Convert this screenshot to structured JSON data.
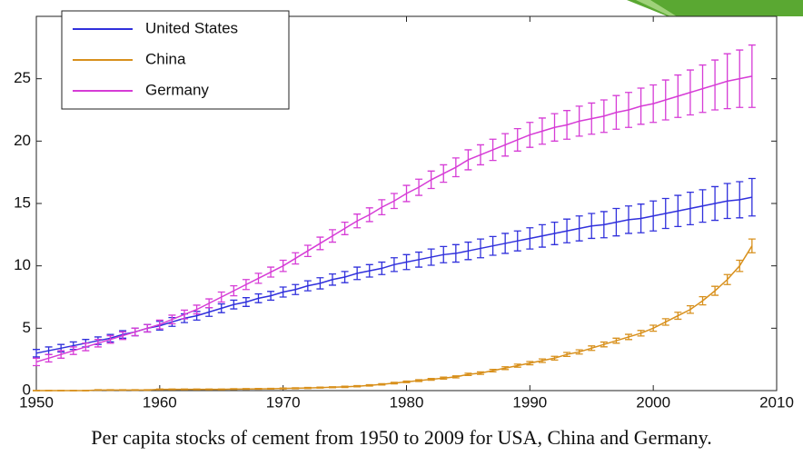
{
  "chart_data": {
    "type": "line",
    "caption": "Per capita stocks of cement from 1950 to 2009 for USA, China and Germany.",
    "x": [
      1950,
      1951,
      1952,
      1953,
      1954,
      1955,
      1956,
      1957,
      1958,
      1959,
      1960,
      1961,
      1962,
      1963,
      1964,
      1965,
      1966,
      1967,
      1968,
      1969,
      1970,
      1971,
      1972,
      1973,
      1974,
      1975,
      1976,
      1977,
      1978,
      1979,
      1980,
      1981,
      1982,
      1983,
      1984,
      1985,
      1986,
      1987,
      1988,
      1989,
      1990,
      1991,
      1992,
      1993,
      1994,
      1995,
      1996,
      1997,
      1998,
      1999,
      2000,
      2001,
      2002,
      2003,
      2004,
      2005,
      2006,
      2007,
      2008
    ],
    "series": [
      {
        "name": "United States",
        "color": "#3030dc",
        "values": [
          3.0,
          3.2,
          3.4,
          3.6,
          3.8,
          4.0,
          4.2,
          4.5,
          4.7,
          5.0,
          5.2,
          5.5,
          5.8,
          6.0,
          6.3,
          6.6,
          6.9,
          7.1,
          7.4,
          7.6,
          7.9,
          8.1,
          8.4,
          8.6,
          8.9,
          9.1,
          9.4,
          9.6,
          9.8,
          10.1,
          10.3,
          10.5,
          10.7,
          10.9,
          11.0,
          11.2,
          11.4,
          11.6,
          11.8,
          12.0,
          12.2,
          12.4,
          12.6,
          12.8,
          13.0,
          13.2,
          13.3,
          13.5,
          13.7,
          13.8,
          14.0,
          14.2,
          14.4,
          14.6,
          14.8,
          15.0,
          15.2,
          15.3,
          15.5
        ],
        "errors": [
          0.3,
          0.3,
          0.3,
          0.3,
          0.3,
          0.3,
          0.3,
          0.3,
          0.3,
          0.3,
          0.35,
          0.35,
          0.35,
          0.35,
          0.35,
          0.35,
          0.35,
          0.35,
          0.35,
          0.35,
          0.4,
          0.4,
          0.4,
          0.45,
          0.45,
          0.45,
          0.5,
          0.5,
          0.5,
          0.55,
          0.6,
          0.6,
          0.65,
          0.65,
          0.7,
          0.7,
          0.75,
          0.75,
          0.8,
          0.8,
          0.85,
          0.9,
          0.9,
          0.95,
          1.0,
          1.0,
          1.05,
          1.1,
          1.1,
          1.15,
          1.2,
          1.2,
          1.25,
          1.3,
          1.3,
          1.35,
          1.4,
          1.45,
          1.5
        ]
      },
      {
        "name": "China",
        "color": "#d8901c",
        "values": [
          0.0,
          0.0,
          0.0,
          0.0,
          0.0,
          0.05,
          0.05,
          0.05,
          0.05,
          0.05,
          0.1,
          0.1,
          0.1,
          0.1,
          0.1,
          0.1,
          0.12,
          0.13,
          0.14,
          0.15,
          0.17,
          0.19,
          0.21,
          0.24,
          0.27,
          0.3,
          0.35,
          0.42,
          0.5,
          0.6,
          0.7,
          0.8,
          0.9,
          1.0,
          1.1,
          1.3,
          1.4,
          1.6,
          1.8,
          2.0,
          2.2,
          2.4,
          2.6,
          2.9,
          3.1,
          3.4,
          3.7,
          4.0,
          4.3,
          4.6,
          5.0,
          5.5,
          6.0,
          6.5,
          7.2,
          8.0,
          8.9,
          10.0,
          11.6
        ],
        "errors": [
          0.02,
          0.02,
          0.02,
          0.02,
          0.02,
          0.02,
          0.02,
          0.02,
          0.02,
          0.02,
          0.03,
          0.03,
          0.03,
          0.03,
          0.03,
          0.03,
          0.03,
          0.03,
          0.03,
          0.03,
          0.04,
          0.04,
          0.04,
          0.04,
          0.04,
          0.05,
          0.05,
          0.05,
          0.05,
          0.06,
          0.06,
          0.07,
          0.07,
          0.08,
          0.08,
          0.09,
          0.1,
          0.1,
          0.11,
          0.12,
          0.13,
          0.14,
          0.15,
          0.16,
          0.17,
          0.18,
          0.19,
          0.2,
          0.21,
          0.22,
          0.24,
          0.26,
          0.28,
          0.3,
          0.33,
          0.36,
          0.4,
          0.45,
          0.55
        ]
      },
      {
        "name": "Germany",
        "color": "#d63cd6",
        "values": [
          2.3,
          2.6,
          2.9,
          3.2,
          3.5,
          3.8,
          4.1,
          4.4,
          4.7,
          5.0,
          5.3,
          5.7,
          6.1,
          6.5,
          7.0,
          7.5,
          8.0,
          8.5,
          9.0,
          9.5,
          10.0,
          10.6,
          11.2,
          11.8,
          12.4,
          13.0,
          13.6,
          14.1,
          14.7,
          15.2,
          15.8,
          16.3,
          16.9,
          17.4,
          17.9,
          18.5,
          18.9,
          19.3,
          19.7,
          20.1,
          20.5,
          20.8,
          21.1,
          21.3,
          21.6,
          21.8,
          22.0,
          22.3,
          22.5,
          22.8,
          23.0,
          23.3,
          23.6,
          23.9,
          24.2,
          24.5,
          24.8,
          25.0,
          25.2
        ],
        "errors": [
          0.3,
          0.3,
          0.3,
          0.3,
          0.3,
          0.3,
          0.3,
          0.3,
          0.3,
          0.3,
          0.35,
          0.35,
          0.35,
          0.35,
          0.35,
          0.4,
          0.4,
          0.4,
          0.4,
          0.4,
          0.45,
          0.45,
          0.45,
          0.5,
          0.5,
          0.5,
          0.55,
          0.55,
          0.6,
          0.6,
          0.65,
          0.65,
          0.7,
          0.7,
          0.75,
          0.8,
          0.8,
          0.85,
          0.9,
          0.9,
          1.0,
          1.05,
          1.1,
          1.15,
          1.2,
          1.25,
          1.3,
          1.35,
          1.4,
          1.45,
          1.5,
          1.6,
          1.7,
          1.8,
          1.9,
          2.0,
          2.2,
          2.3,
          2.5
        ]
      }
    ],
    "xlim": [
      1950,
      2010
    ],
    "xticks": [
      1950,
      1960,
      1970,
      1980,
      1990,
      2000,
      2010
    ],
    "ylim": [
      0,
      30
    ],
    "yticks": [
      0,
      5,
      10,
      15,
      20,
      25
    ],
    "grid": false,
    "legend": "upper left"
  }
}
